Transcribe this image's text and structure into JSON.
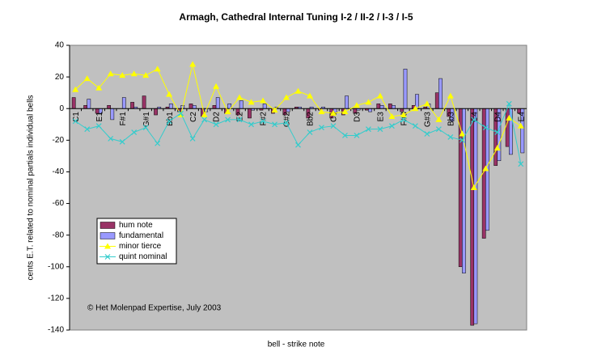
{
  "chart_data": {
    "type": "bar-line",
    "title": "Armagh, Cathedral Internal Tuning I-2 / II-2 / I-3 / I-5",
    "x_label": "bell - strike note",
    "y_label": "cents E.T. related to nominal partials individual bells",
    "annotation": "© Het Molenpad Expertise, July 2003",
    "categories": [
      "C1",
      null,
      "E1",
      null,
      "F#1",
      null,
      "G#1",
      null,
      "Bb1",
      null,
      "C2",
      null,
      "D2",
      null,
      "E2",
      null,
      "F#2",
      null,
      "G#2",
      null,
      "Bb2",
      null,
      "C3",
      null,
      "D3",
      null,
      "E3",
      null,
      "F#3",
      null,
      "G#3",
      null,
      "Bb3",
      null,
      "C4",
      null,
      "D4",
      null,
      "E4"
    ],
    "ylim": [
      -140,
      40
    ],
    "yticks": [
      -140,
      -120,
      -100,
      -80,
      -60,
      -40,
      -20,
      0,
      20,
      40
    ],
    "series": [
      {
        "name": "hum note",
        "kind": "bar",
        "color": "#993366",
        "values": [
          7,
          2,
          -3,
          2,
          0,
          4,
          8,
          -4,
          1,
          -2,
          3,
          -5,
          2,
          -3,
          -4,
          -6,
          -1,
          -3,
          -4,
          1,
          -6,
          -1,
          -6,
          -4,
          -3,
          -1,
          3,
          3,
          -2,
          2,
          1,
          10,
          -5,
          -100,
          -137,
          -82,
          -36,
          -24,
          -3
        ]
      },
      {
        "name": "fundamental",
        "kind": "bar",
        "color": "#9999ff",
        "values": [
          0,
          6,
          -3,
          -7,
          7,
          1,
          0,
          1,
          3,
          2,
          2,
          -2,
          7,
          3,
          5,
          -1,
          3,
          1,
          -2,
          1,
          1,
          1,
          -3,
          8,
          -1,
          -2,
          2,
          2,
          25,
          9,
          3,
          19,
          -8,
          -104,
          -136,
          -77,
          -33,
          -29,
          -28
        ]
      },
      {
        "name": "minor tierce",
        "kind": "line",
        "color": "#ffff00",
        "marker": "triangle",
        "values": [
          12,
          19,
          13,
          22,
          21,
          22,
          21,
          25,
          9,
          -4,
          28,
          -4,
          14,
          -2,
          7,
          4,
          5,
          -1,
          7,
          11,
          8,
          -2,
          -3,
          -2,
          2,
          4,
          8,
          -5,
          -4,
          0,
          3,
          -7,
          8,
          -16,
          -50,
          -38,
          -25,
          -6,
          -11
        ]
      },
      {
        "name": "quint nominal",
        "kind": "line",
        "color": "#33cccc",
        "marker": "x",
        "values": [
          -8,
          -13,
          -11,
          -19,
          -21,
          -15,
          -12,
          -22,
          -8,
          -3,
          -19,
          -7,
          -10,
          -7,
          -7,
          -10,
          -8,
          -10,
          -9,
          -23,
          -15,
          -12,
          -11,
          -17,
          -17,
          -13,
          -13,
          -11,
          -7,
          -11,
          -16,
          -13,
          -18,
          -20,
          -7,
          -12,
          -15,
          3,
          -35
        ]
      }
    ]
  }
}
